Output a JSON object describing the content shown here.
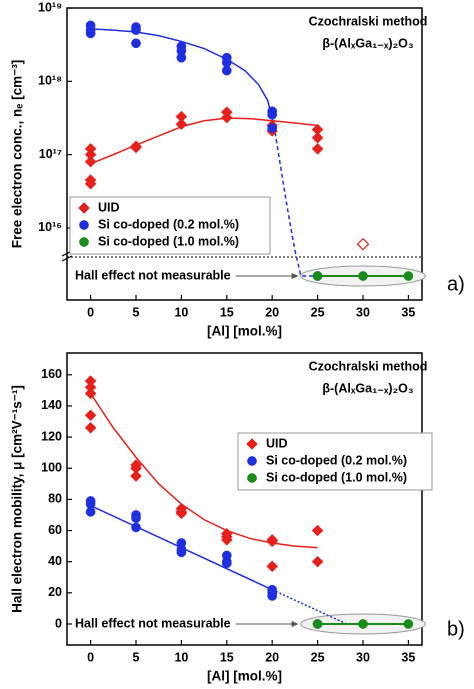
{
  "chart_data": [
    {
      "type": "scatter",
      "panel_label": "a)",
      "annotations": [
        "Czochralski method",
        "β-(AlₓGa₁₋ₓ)₂O₃"
      ],
      "x_label": "[Al] [mol.%]",
      "y_label": "Free electron conc., nₑ [cm⁻³]",
      "xlim": [
        -2.6,
        36.5
      ],
      "xticks": [
        0,
        5,
        10,
        15,
        20,
        25,
        30,
        35
      ],
      "ylim": [
        5000000000000000.0,
        1e+19
      ],
      "log_y": true,
      "axis_break": true,
      "yticks": [
        {
          "value": 1e+16,
          "label": "10¹⁶"
        },
        {
          "value": 1e+17,
          "label": "10¹⁷"
        },
        {
          "value": 1e+18,
          "label": "10¹⁸"
        },
        {
          "value": 1e+19,
          "label": "10¹⁹"
        }
      ],
      "not_measurable_label": "Hall effect not measurable",
      "series": [
        {
          "name": "UID",
          "color": "#e8201c",
          "marker": "diamond",
          "x": [
            0,
            0,
            0,
            0,
            0,
            5,
            5,
            10,
            10,
            15,
            15,
            20,
            20,
            25,
            25,
            25
          ],
          "values": [
            1.2e+17,
            1e+17,
            8e+16,
            4.5e+16,
            4e+16,
            1.3e+17,
            1.25e+17,
            3.3e+17,
            2.6e+17,
            3.8e+17,
            3.2e+17,
            2.5e+17,
            2.1e+17,
            2.2e+17,
            1.7e+17,
            1.2e+17
          ],
          "open_x": [
            30
          ],
          "open_values": [
            6000000000000000.0
          ]
        },
        {
          "name": "Si co-doped (0.2 mol.%)",
          "color": "#1f2fe0",
          "marker": "circle",
          "x": [
            0,
            0,
            0,
            5,
            5,
            5,
            10,
            10,
            10,
            15,
            15,
            15,
            20,
            20,
            20
          ],
          "values": [
            5.8e+18,
            5e+18,
            4.5e+18,
            5.5e+18,
            5e+18,
            3.3e+18,
            3e+18,
            2.6e+18,
            2.1e+18,
            2.1e+18,
            1.8e+18,
            1.4e+18,
            3.9e+17,
            3.5e+17,
            2.3e+17
          ],
          "not_measurable_x": [
            25
          ]
        },
        {
          "name": "Si co-doped (1.0 mol.%)",
          "color": "#1a8a1a",
          "marker": "circle",
          "line": true,
          "x": [],
          "values": [],
          "not_measurable_x": [
            25,
            30,
            35
          ]
        }
      ],
      "fits": [
        {
          "color": "#e8201c",
          "style": "solid",
          "x": [
            0,
            2.5,
            5,
            7.5,
            10,
            12.5,
            15,
            17.5,
            20,
            22.5,
            25
          ],
          "values": [
            7.5e+16,
            1e+17,
            1.35e+17,
            1.8e+17,
            2.4e+17,
            2.9e+17,
            3.15e+17,
            3.1e+17,
            2.9e+17,
            2.7e+17,
            2.5e+17
          ]
        },
        {
          "color": "#1f2fe0",
          "style": "solid",
          "x": [
            0,
            2.5,
            5,
            7.5,
            10,
            12.5,
            15,
            17,
            18.5,
            19.5,
            20.2
          ],
          "values": [
            5.2e+18,
            5e+18,
            4.7e+18,
            4.2e+18,
            3.5e+18,
            2.8e+18,
            2e+18,
            1.4e+18,
            9e+17,
            5.5e+17,
            2.5e+17
          ]
        },
        {
          "color": "#1f2fe0",
          "style": "dashed",
          "x": [
            20.2,
            21,
            21.8,
            22.5
          ],
          "values": [
            2.5e+17,
            6e+16,
            1.5e+16,
            5000000000000000.0
          ]
        }
      ]
    },
    {
      "type": "scatter",
      "panel_label": "b)",
      "annotations": [
        "Czochralski method",
        "β-(AlₓGa₁₋ₓ)₂O₃"
      ],
      "x_label": "[Al] [mol.%]",
      "y_label": "Hall electron mobility, μ [cm²V⁻¹s⁻¹]",
      "xlim": [
        -2.6,
        36.5
      ],
      "xticks": [
        0,
        5,
        10,
        15,
        20,
        25,
        30,
        35
      ],
      "ylim": [
        -13.5,
        174
      ],
      "yticks": [
        0,
        20,
        40,
        60,
        80,
        100,
        120,
        140,
        160
      ],
      "not_measurable_label": "Hall effect not measurable",
      "series": [
        {
          "name": "UID",
          "color": "#e8201c",
          "marker": "diamond",
          "x": [
            0,
            0,
            0,
            0,
            0,
            5,
            5,
            5,
            10,
            10,
            10,
            15,
            15,
            15,
            20,
            20,
            20,
            25,
            25
          ],
          "values": [
            156,
            152,
            148,
            134,
            126,
            102,
            100,
            95,
            74,
            72,
            71,
            58,
            56,
            54,
            54,
            53,
            37,
            60,
            40
          ]
        },
        {
          "name": "Si co-doped (0.2 mol.%)",
          "color": "#1f2fe0",
          "marker": "circle",
          "x": [
            0,
            0,
            0,
            5,
            5,
            5,
            10,
            10,
            10,
            15,
            15,
            15,
            20,
            20,
            20,
            25
          ],
          "values": [
            79,
            77,
            72,
            70,
            68,
            62,
            52,
            48,
            46,
            44,
            40,
            39,
            22,
            20,
            18,
            0
          ]
        },
        {
          "name": "Si co-doped (1.0 mol.%)",
          "color": "#1a8a1a",
          "marker": "circle",
          "line": true,
          "x": [
            25,
            30,
            35
          ],
          "values": [
            0,
            0,
            0
          ]
        }
      ],
      "fits": [
        {
          "color": "#e8201c",
          "style": "solid",
          "x": [
            0,
            2.5,
            5,
            7.5,
            10,
            12.5,
            15,
            17.5,
            20,
            22.5,
            25
          ],
          "values": [
            148,
            126,
            107,
            90,
            77,
            67,
            60,
            55,
            52,
            50,
            49
          ]
        },
        {
          "color": "#1f2fe0",
          "style": "solid",
          "x": [
            0,
            20
          ],
          "values": [
            76,
            22
          ]
        },
        {
          "color": "#1f2fe0",
          "style": "dotted",
          "x": [
            20,
            28.2
          ],
          "values": [
            22,
            0
          ]
        }
      ]
    }
  ]
}
